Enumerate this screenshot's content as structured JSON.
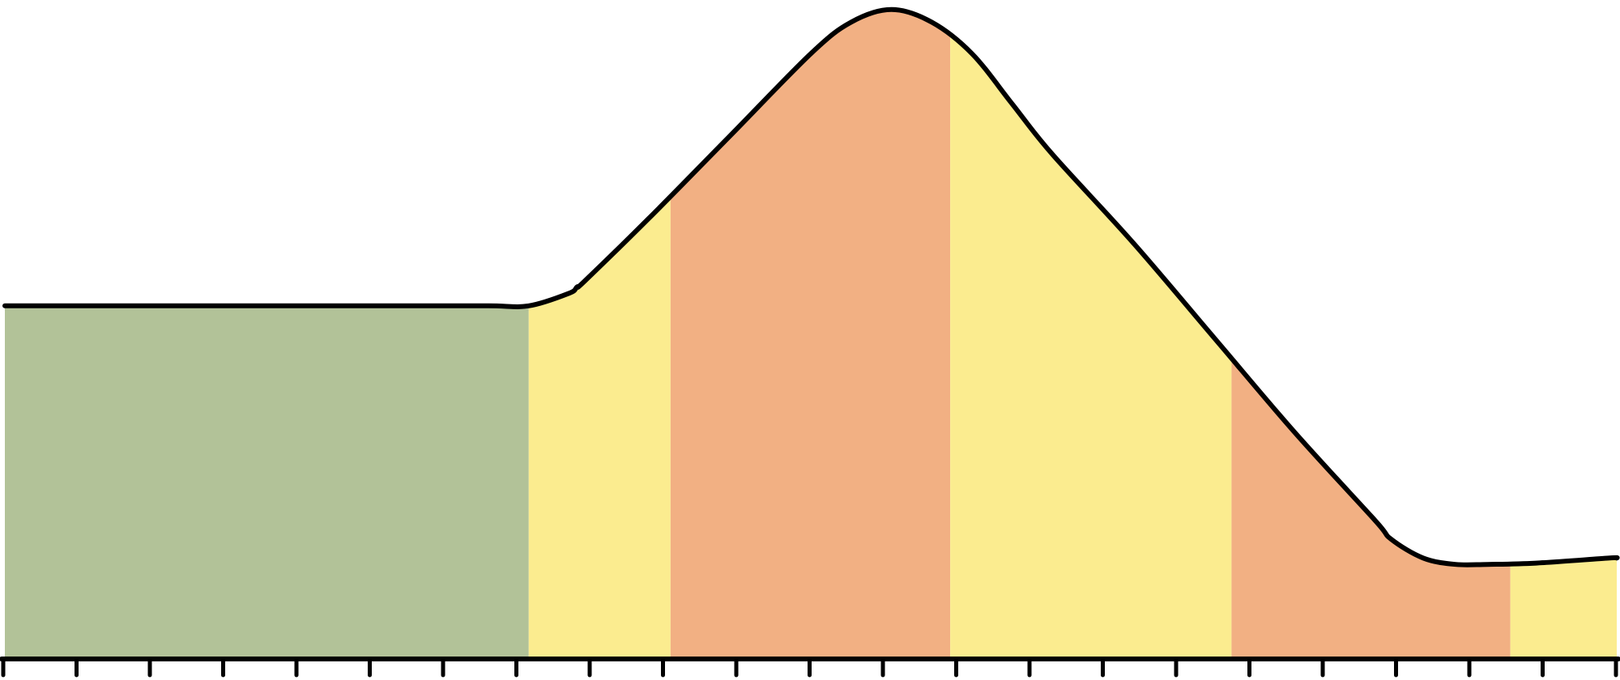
{
  "chart_data": {
    "type": "area",
    "x": [
      0,
      100,
      200,
      300,
      400,
      500,
      600,
      650,
      700,
      710,
      720,
      800,
      900,
      1000,
      1050,
      1100,
      1150,
      1200,
      1250,
      1300,
      1400,
      1500,
      1600,
      1700,
      1720,
      1760,
      1800,
      1840,
      1900,
      1990,
      2000
    ],
    "y": [
      1,
      1,
      1,
      1,
      1,
      1,
      1,
      1,
      1.2,
      1.3,
      1.4,
      2.4,
      3.7,
      5.0,
      5.5,
      5.7,
      5.5,
      5.0,
      4.2,
      3.4,
      2.0,
      0.5,
      -1.0,
      -2.4,
      -2.7,
      -3.0,
      -3.1,
      -3.1,
      -3.08,
      -3.0,
      -3.0
    ],
    "xlim": [
      0,
      2000
    ],
    "ylim": [
      -4.6,
      5.8
    ],
    "tick_count": 23,
    "grid": false,
    "legend": "none",
    "bands": [
      {
        "from": 0,
        "to": 650,
        "color": "#b2c298"
      },
      {
        "from": 650,
        "to": 826,
        "color": "#fbec8f"
      },
      {
        "from": 826,
        "to": 1173,
        "color": "#f2b083"
      },
      {
        "from": 1173,
        "to": 1522,
        "color": "#fbec8f"
      },
      {
        "from": 1522,
        "to": 1868,
        "color": "#f2b083"
      },
      {
        "from": 1868,
        "to": 2000,
        "color": "#fbec8f"
      }
    ],
    "line_color": "#000000"
  }
}
